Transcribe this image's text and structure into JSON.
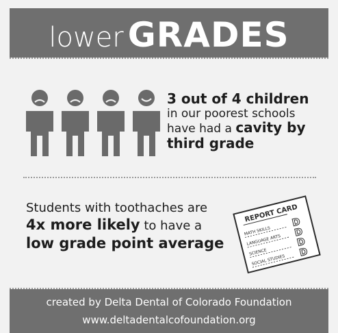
{
  "header": {
    "title_light": "lower",
    "title_bold": "GRADES"
  },
  "stat_children": {
    "line1": "3 out of 4 children",
    "line2": "in our poorest schools",
    "line3_prefix": "have had a ",
    "line3_bold": "cavity by",
    "line4": "third grade",
    "kids": [
      {
        "mood": "sad"
      },
      {
        "mood": "sad"
      },
      {
        "mood": "sad"
      },
      {
        "mood": "happy"
      }
    ]
  },
  "stat_toothache": {
    "line1": "Students with toothaches are",
    "line2_bold": "4x more likely",
    "line2_rest": " to have a",
    "line3": "low grade point average"
  },
  "report_card": {
    "title": "REPORT CARD",
    "subjects": [
      "MATH SKILLS",
      "LANGUAGE ARTS",
      "SCIENCE",
      "SOCIAL STUDIES"
    ],
    "grade": "D",
    "icon": "report-card-icon"
  },
  "footer": {
    "credit": "created by Delta Dental of Colorado Foundation",
    "url": "www.deltadentalcofoundation.org"
  },
  "colors": {
    "banner": "#6f6f6f",
    "figure": "#6a6a6a",
    "text": "#1c1c1c",
    "background": "#f2f2f2"
  }
}
